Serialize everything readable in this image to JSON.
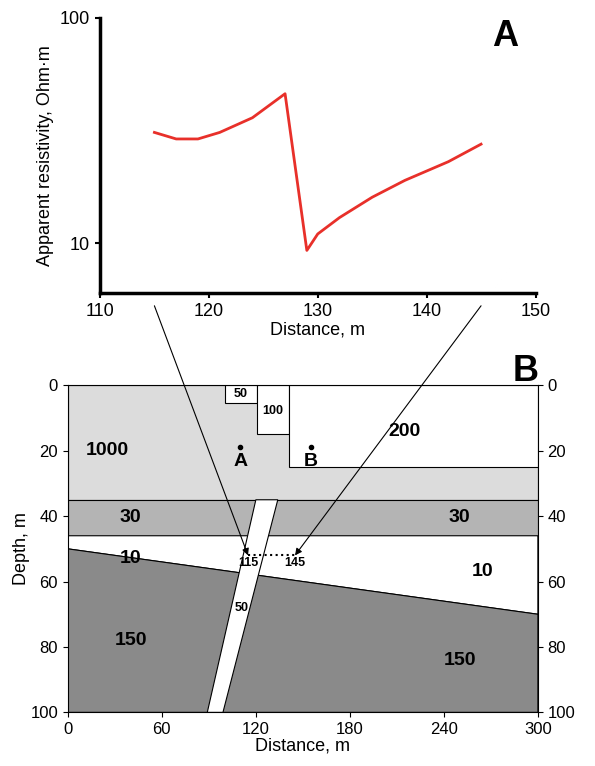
{
  "chart_data": {
    "type": "line",
    "panel_label": "A",
    "xlabel": "Distance, m",
    "ylabel": "Apparent resistivity, Ohm·m",
    "x": [
      115,
      117,
      119,
      121,
      124,
      127,
      129,
      130,
      132,
      135,
      138,
      142,
      145
    ],
    "values": [
      31,
      29,
      29,
      31,
      36,
      46,
      9.3,
      11,
      13,
      16,
      19,
      23,
      27.5
    ],
    "color": "#e8302a",
    "log": "y",
    "xlim": [
      110,
      150
    ],
    "xticks": [
      110,
      120,
      130,
      140,
      150
    ],
    "ylim": [
      6,
      100
    ],
    "yticks": [
      10,
      100
    ]
  },
  "section": {
    "panel_label": "B",
    "xlabel": "Distance, m",
    "ylabel": "Depth, m",
    "xlim": [
      0,
      300
    ],
    "xticks": [
      0,
      60,
      120,
      180,
      240,
      300
    ],
    "ylim": [
      100,
      0
    ],
    "yticks": [
      0,
      20,
      40,
      60,
      80,
      100
    ],
    "bodies": [
      {
        "resistivity": 1000,
        "color": "#dcdcdc",
        "polygon": [
          [
            0,
            0
          ],
          [
            300,
            0
          ],
          [
            300,
            35
          ],
          [
            0,
            35
          ]
        ],
        "label_at": [
          [
            25,
            20
          ]
        ]
      },
      {
        "resistivity": 50,
        "color": "#ffffff",
        "polygon": [
          [
            100,
            0
          ],
          [
            121,
            0
          ],
          [
            121,
            5.5
          ],
          [
            100,
            5.5
          ]
        ],
        "label_at": [
          [
            110,
            2.8
          ]
        ]
      },
      {
        "resistivity": 100,
        "color": "#ffffff",
        "polygon": [
          [
            121,
            0
          ],
          [
            141,
            0
          ],
          [
            141,
            15
          ],
          [
            121,
            15
          ]
        ],
        "label_at": [
          [
            131,
            8
          ]
        ]
      },
      {
        "resistivity": 200,
        "color": "#ffffff",
        "polygon": [
          [
            141,
            0
          ],
          [
            300,
            0
          ],
          [
            300,
            25
          ],
          [
            141,
            25
          ]
        ],
        "label_at": [
          [
            215,
            14
          ]
        ]
      },
      {
        "resistivity": 30,
        "color": "#b4b4b4",
        "polygon": [
          [
            0,
            35
          ],
          [
            300,
            35
          ],
          [
            300,
            46
          ],
          [
            0,
            46
          ]
        ],
        "label_at": [
          [
            40,
            40.5
          ],
          [
            250,
            40.5
          ]
        ]
      },
      {
        "resistivity": 10,
        "color": "#ffffff",
        "polygon": [
          [
            0,
            46
          ],
          [
            300,
            46
          ],
          [
            300,
            70
          ],
          [
            0,
            50
          ]
        ],
        "label_at": [
          [
            40,
            53
          ],
          [
            265,
            57
          ]
        ]
      },
      {
        "resistivity": 150,
        "color": "#8a8a8a",
        "polygon": [
          [
            0,
            50
          ],
          [
            300,
            70
          ],
          [
            300,
            100
          ],
          [
            0,
            100
          ]
        ],
        "label_at": [
          [
            40,
            78
          ],
          [
            250,
            84
          ]
        ]
      },
      {
        "resistivity": 50,
        "color": "#ffffff",
        "polygon": [
          [
            120,
            35
          ],
          [
            134,
            35
          ],
          [
            99,
            100
          ],
          [
            89,
            100
          ]
        ],
        "label_at": [
          [
            111,
            68
          ]
        ]
      }
    ],
    "points": [
      {
        "label": "A",
        "at": [
          110,
          19
        ]
      },
      {
        "label": "B",
        "at": [
          155,
          19
        ]
      }
    ],
    "profile": {
      "from": 115,
      "to": 145,
      "depth": 52
    }
  }
}
